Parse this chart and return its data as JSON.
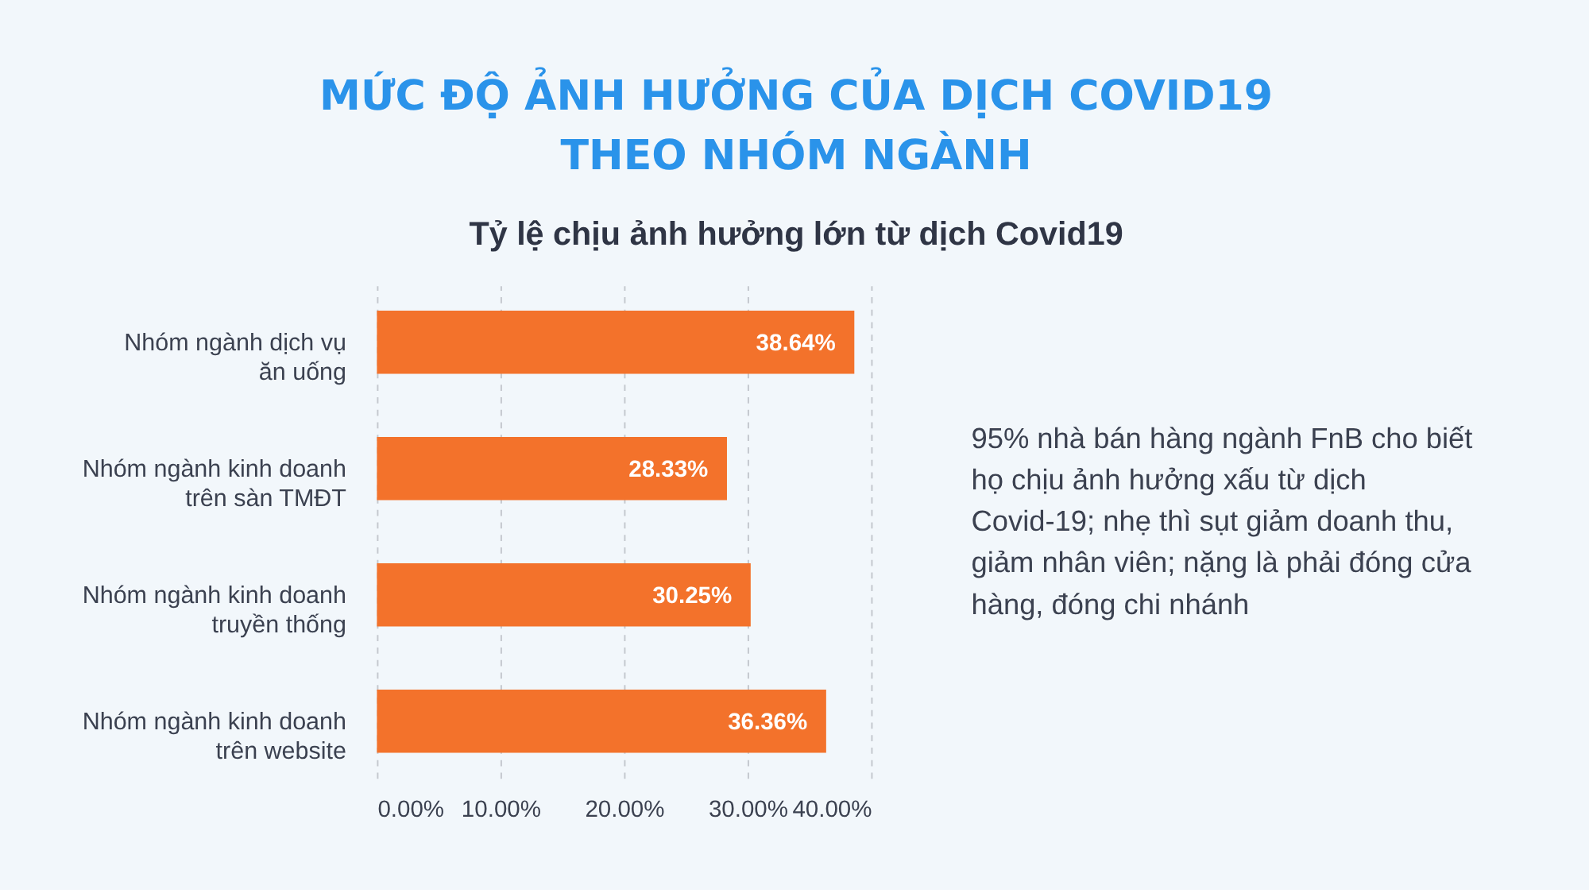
{
  "chart_data": {
    "type": "bar",
    "orientation": "horizontal",
    "title": "MỨC ĐỘ ẢNH HƯỞNG CỦA DỊCH COVID19 THEO NHÓM NGÀNH",
    "subtitle": "Tỷ lệ chịu ảnh hưởng lớn từ dịch Covid19",
    "categories": [
      "Nhóm ngành dịch vụ\năn uống",
      "Nhóm ngành kinh doanh\ntrên sàn TMĐT",
      "Nhóm ngành kinh doanh\ntruyền thống",
      "Nhóm ngành kinh doanh\ntrên website"
    ],
    "values": [
      38.64,
      28.33,
      30.25,
      36.36
    ],
    "value_labels": [
      "38.64%",
      "28.33%",
      "30.25%",
      "36.36%"
    ],
    "color": "#f3722b",
    "xlim": [
      0,
      40
    ],
    "xticks": [
      {
        "value": 0,
        "label": "0.00%"
      },
      {
        "value": 10,
        "label": "10.00%"
      },
      {
        "value": 20,
        "label": "20.00%"
      },
      {
        "value": 30,
        "label": "30.00%"
      },
      {
        "value": 40,
        "label": "40.00%"
      }
    ],
    "grid": "x",
    "annotations": [
      "95% nhà bán hàng ngành FnB cho biết họ chịu ảnh hưởng xấu từ dịch Covid-19; nhẹ thì sụt giảm doanh thu, giảm nhân viên; nặng là phải đóng cửa hàng, đóng chi nhánh"
    ]
  }
}
